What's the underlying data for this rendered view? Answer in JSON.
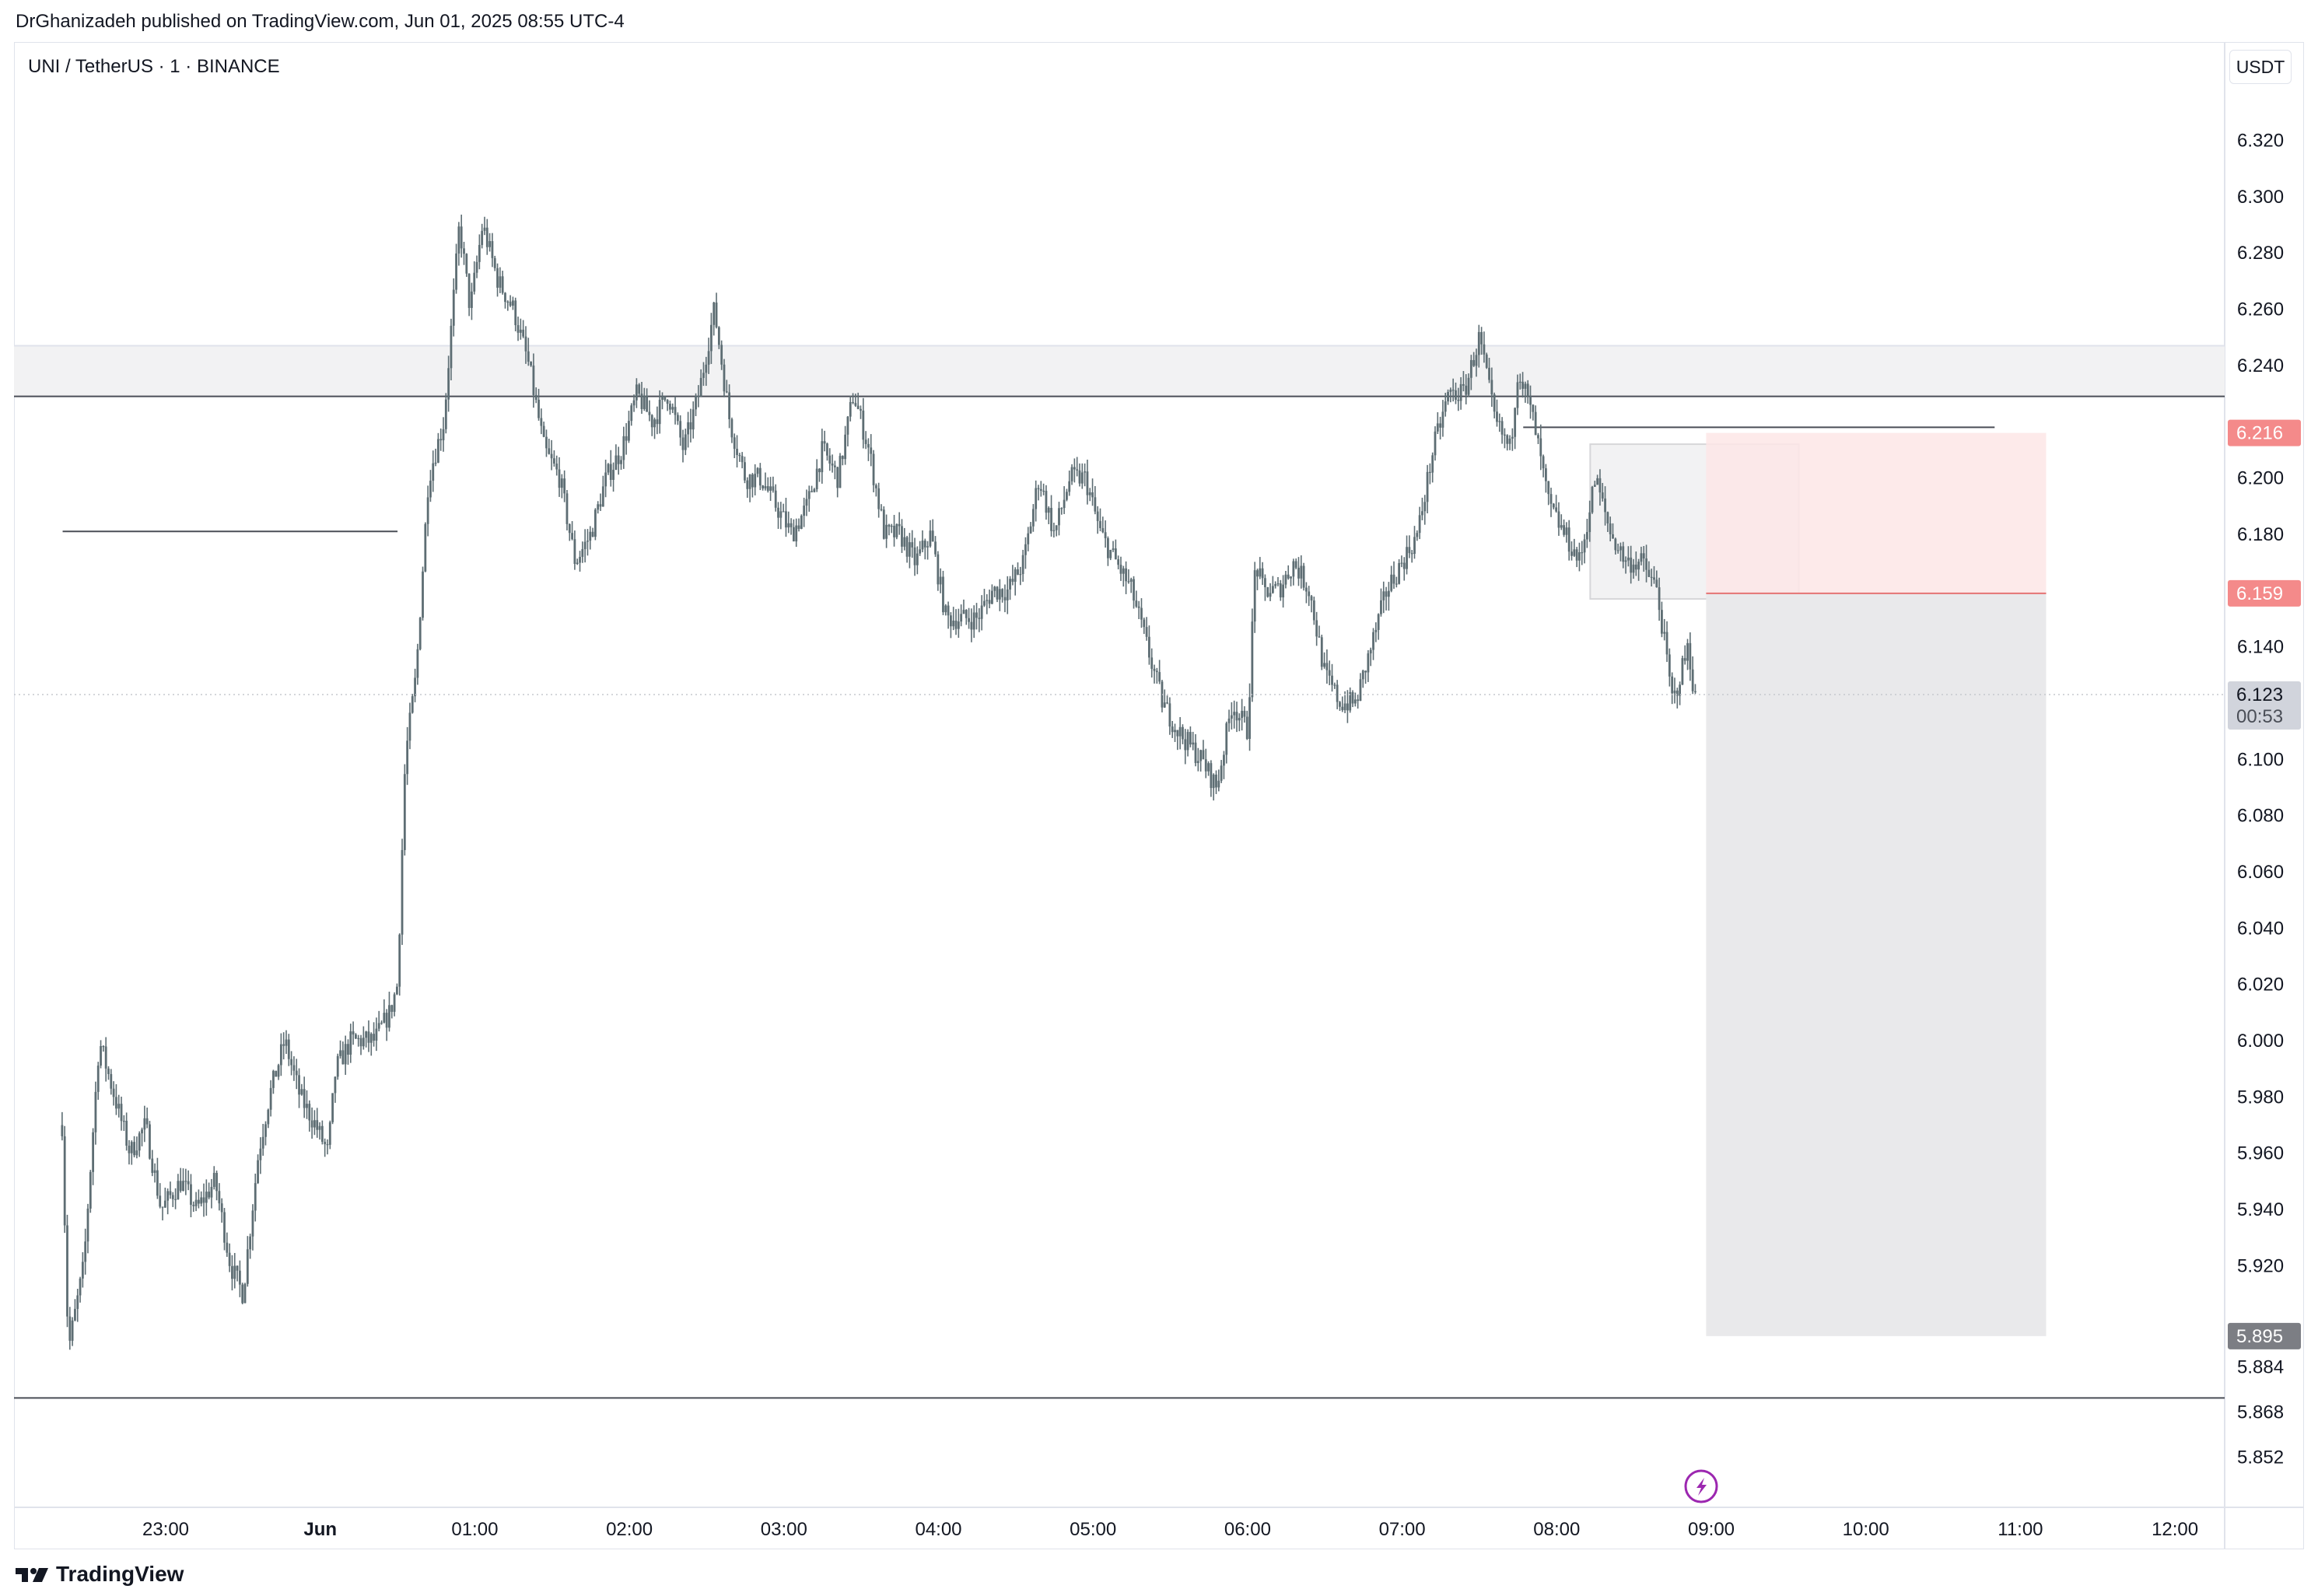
{
  "header": {
    "publish_text": "DrGhanizadeh published on TradingView.com, Jun 01, 2025 08:55 UTC-4"
  },
  "symbol": {
    "title": "UNI / TetherUS · 1 · BINANCE"
  },
  "currency_button": {
    "label": "USDT"
  },
  "footer": {
    "logo_text": "TradingView"
  },
  "colors": {
    "candles": "#5d6d73",
    "zone_fill": "#f2f2f3",
    "stop_zone": "#fde6e6",
    "target_zone": "#e9e9eb",
    "red_tag": "#f48a8a",
    "gray_tag": "#7c7e84",
    "current_tag": "#d1d4dc",
    "lightning": "#9c27b0"
  },
  "chart_data": {
    "type": "candlestick",
    "symbol": "UNI / TetherUS",
    "interval": "1",
    "exchange": "BINANCE",
    "currency": "USDT",
    "y_ticks": [
      "6.320",
      "6.300",
      "6.280",
      "6.260",
      "6.240",
      "6.200",
      "6.180",
      "6.140",
      "6.100",
      "6.080",
      "6.060",
      "6.040",
      "6.020",
      "6.000",
      "5.980",
      "5.960",
      "5.940",
      "5.920",
      "5.884",
      "5.868",
      "5.852"
    ],
    "x_ticks": [
      "23:00",
      "Jun",
      "01:00",
      "02:00",
      "03:00",
      "04:00",
      "05:00",
      "06:00",
      "07:00",
      "08:00",
      "09:00",
      "10:00",
      "11:00",
      "12:00"
    ],
    "price_tags": [
      {
        "label": "6.216",
        "value": 6.216,
        "style": "red"
      },
      {
        "label": "6.159",
        "value": 6.159,
        "style": "red"
      },
      {
        "label": "6.123",
        "value": 6.123,
        "style": "current",
        "countdown": "00:53"
      },
      {
        "label": "5.895",
        "value": 5.895,
        "style": "gray"
      }
    ],
    "path": [
      [
        22.33,
        5.97
      ],
      [
        22.37,
        5.89
      ],
      [
        22.47,
        5.92
      ],
      [
        22.57,
        6.0
      ],
      [
        22.67,
        5.98
      ],
      [
        22.77,
        5.96
      ],
      [
        22.87,
        5.97
      ],
      [
        22.97,
        5.94
      ],
      [
        23.1,
        5.95
      ],
      [
        23.2,
        5.94
      ],
      [
        23.32,
        5.95
      ],
      [
        23.42,
        5.92
      ],
      [
        23.5,
        5.91
      ],
      [
        23.6,
        5.96
      ],
      [
        23.67,
        5.98
      ],
      [
        23.77,
        6.0
      ],
      [
        23.87,
        5.98
      ],
      [
        23.97,
        5.97
      ],
      [
        24.05,
        5.96
      ],
      [
        24.1,
        5.99
      ],
      [
        24.2,
        6.0
      ],
      [
        24.35,
        6.0
      ],
      [
        24.45,
        6.01
      ],
      [
        24.5,
        6.02
      ],
      [
        24.55,
        6.1
      ],
      [
        24.62,
        6.13
      ],
      [
        24.7,
        6.2
      ],
      [
        24.8,
        6.22
      ],
      [
        24.9,
        6.29
      ],
      [
        24.97,
        6.26
      ],
      [
        25.05,
        6.29
      ],
      [
        25.15,
        6.27
      ],
      [
        25.25,
        6.26
      ],
      [
        25.35,
        6.24
      ],
      [
        25.45,
        6.21
      ],
      [
        25.55,
        6.2
      ],
      [
        25.65,
        6.17
      ],
      [
        25.75,
        6.18
      ],
      [
        25.85,
        6.2
      ],
      [
        25.95,
        6.21
      ],
      [
        26.05,
        6.23
      ],
      [
        26.15,
        6.22
      ],
      [
        26.25,
        6.23
      ],
      [
        26.35,
        6.21
      ],
      [
        26.45,
        6.23
      ],
      [
        26.55,
        6.26
      ],
      [
        26.65,
        6.22
      ],
      [
        26.75,
        6.2
      ],
      [
        26.85,
        6.2
      ],
      [
        26.95,
        6.19
      ],
      [
        27.05,
        6.18
      ],
      [
        27.15,
        6.19
      ],
      [
        27.25,
        6.21
      ],
      [
        27.35,
        6.2
      ],
      [
        27.45,
        6.23
      ],
      [
        27.55,
        6.21
      ],
      [
        27.65,
        6.18
      ],
      [
        27.75,
        6.18
      ],
      [
        27.85,
        6.17
      ],
      [
        27.95,
        6.18
      ],
      [
        28.05,
        6.15
      ],
      [
        28.15,
        6.15
      ],
      [
        28.25,
        6.15
      ],
      [
        28.35,
        6.16
      ],
      [
        28.45,
        6.16
      ],
      [
        28.55,
        6.17
      ],
      [
        28.65,
        6.2
      ],
      [
        28.75,
        6.18
      ],
      [
        28.85,
        6.2
      ],
      [
        28.95,
        6.2
      ],
      [
        29.05,
        6.18
      ],
      [
        29.15,
        6.17
      ],
      [
        29.25,
        6.16
      ],
      [
        29.35,
        6.14
      ],
      [
        29.45,
        6.12
      ],
      [
        29.55,
        6.11
      ],
      [
        29.7,
        6.1
      ],
      [
        29.8,
        6.09
      ],
      [
        29.9,
        6.12
      ],
      [
        30.0,
        6.11
      ],
      [
        30.05,
        6.17
      ],
      [
        30.1,
        6.16
      ],
      [
        30.2,
        6.16
      ],
      [
        30.3,
        6.17
      ],
      [
        30.4,
        6.16
      ],
      [
        30.5,
        6.13
      ],
      [
        30.6,
        6.12
      ],
      [
        30.7,
        6.12
      ],
      [
        30.8,
        6.14
      ],
      [
        30.9,
        6.16
      ],
      [
        31.0,
        6.17
      ],
      [
        31.1,
        6.18
      ],
      [
        31.2,
        6.21
      ],
      [
        31.3,
        6.23
      ],
      [
        31.4,
        6.23
      ],
      [
        31.5,
        6.25
      ],
      [
        31.6,
        6.22
      ],
      [
        31.7,
        6.21
      ],
      [
        31.75,
        6.24
      ],
      [
        31.85,
        6.22
      ],
      [
        31.95,
        6.19
      ],
      [
        32.05,
        6.18
      ],
      [
        32.15,
        6.17
      ],
      [
        32.25,
        6.2
      ],
      [
        32.35,
        6.18
      ],
      [
        32.45,
        6.17
      ],
      [
        32.55,
        6.17
      ],
      [
        32.65,
        6.16
      ],
      [
        32.75,
        6.12
      ],
      [
        32.85,
        6.14
      ],
      [
        32.9,
        6.12
      ]
    ],
    "levels": [
      {
        "value": 6.247,
        "x0": "22:20",
        "x1": "12:20",
        "kind": "zone_top"
      },
      {
        "value": 6.229,
        "x0": "22:20",
        "x1": "12:20",
        "kind": "zone_bottom"
      },
      {
        "value": 6.181,
        "x0": "22:20",
        "x1": "00:30",
        "kind": "ray"
      },
      {
        "value": 6.218,
        "x0": "07:47",
        "x1": "10:50",
        "kind": "ray"
      },
      {
        "value": 5.873,
        "x0": "22:20",
        "x1": "12:20",
        "kind": "line"
      }
    ],
    "zones": [
      {
        "kind": "supply",
        "x0": "08:13",
        "x1": "09:34",
        "top": 6.212,
        "bottom": 6.157
      },
      {
        "kind": "stop",
        "x0": "08:58",
        "x1": "11:10",
        "top": 6.216,
        "bottom": 6.159
      },
      {
        "kind": "target",
        "x0": "08:58",
        "x1": "11:10",
        "top": 6.159,
        "bottom": 5.895
      }
    ]
  }
}
